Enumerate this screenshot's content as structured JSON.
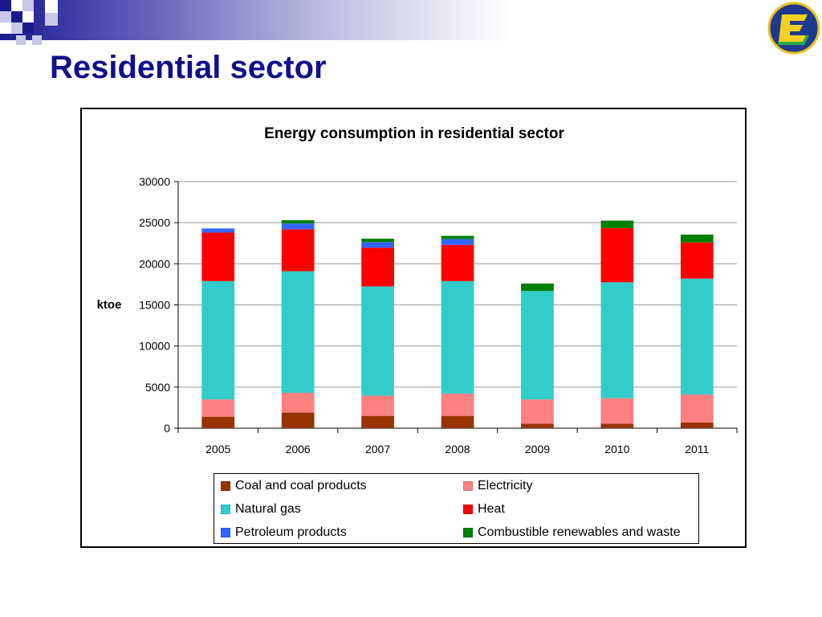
{
  "slide": {
    "title": "Residential sector",
    "logo_icon": "energy-e-logo",
    "banner_colors": {
      "dark": "#1a1a8c",
      "mid": "#8080c8",
      "light": "#c8c8e8"
    }
  },
  "chart_data": {
    "type": "bar",
    "stacked": true,
    "title": "Energy consumption in residential sector",
    "xlabel": "",
    "ylabel": "ktoe",
    "ylim": [
      0,
      30000
    ],
    "yticks": [
      0,
      5000,
      10000,
      15000,
      20000,
      25000,
      30000
    ],
    "grid": true,
    "legend_position": "bottom",
    "categories": [
      "2005",
      "2006",
      "2007",
      "2008",
      "2009",
      "2010",
      "2011"
    ],
    "series": [
      {
        "name": "Coal and coal products",
        "color": "#993300",
        "values": [
          1400,
          1900,
          1500,
          1500,
          550,
          550,
          700
        ]
      },
      {
        "name": "Electricity",
        "color": "#ff8080",
        "values": [
          2100,
          2400,
          2450,
          2700,
          2950,
          3100,
          3400
        ]
      },
      {
        "name": "Natural gas",
        "color": "#33cccc",
        "values": [
          14400,
          14800,
          13300,
          13700,
          13200,
          14100,
          14100
        ]
      },
      {
        "name": "Heat",
        "color": "#ff0000",
        "values": [
          5900,
          5100,
          4700,
          4400,
          0,
          6600,
          4400
        ]
      },
      {
        "name": "Petroleum products",
        "color": "#3366ff",
        "values": [
          500,
          700,
          700,
          700,
          0,
          0,
          0
        ]
      },
      {
        "name": "Combustible renewables and waste",
        "color": "#008000",
        "values": [
          0,
          400,
          400,
          400,
          900,
          900,
          950
        ]
      }
    ]
  }
}
